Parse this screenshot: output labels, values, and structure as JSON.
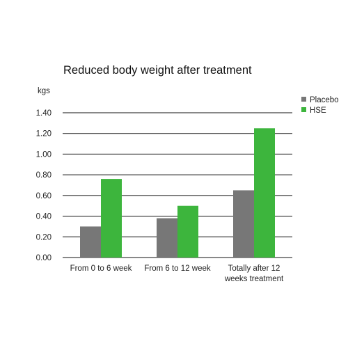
{
  "chart_data": {
    "type": "bar",
    "title": "Reduced body weight after treatment",
    "ylabel": "kgs",
    "xlabel": "",
    "categories": [
      [
        "From 0 to 6 week"
      ],
      [
        "From 6 to 12 week"
      ],
      [
        "Totally after 12",
        "weeks treatment"
      ]
    ],
    "series": [
      {
        "name": "Placebo",
        "color": "#777777",
        "values": [
          0.3,
          0.38,
          0.65
        ]
      },
      {
        "name": "HSE",
        "color": "#3db53d",
        "values": [
          0.76,
          0.5,
          1.25
        ]
      }
    ],
    "ylim": [
      0,
      1.4
    ],
    "yticks": [
      "0.00",
      "0.20",
      "0.40",
      "0.60",
      "0.80",
      "1.00",
      "1.20",
      "1.40"
    ],
    "ytick_values": [
      0,
      0.2,
      0.4,
      0.6,
      0.8,
      1.0,
      1.2,
      1.4
    ],
    "grid": true,
    "legend_position": "top-right"
  }
}
